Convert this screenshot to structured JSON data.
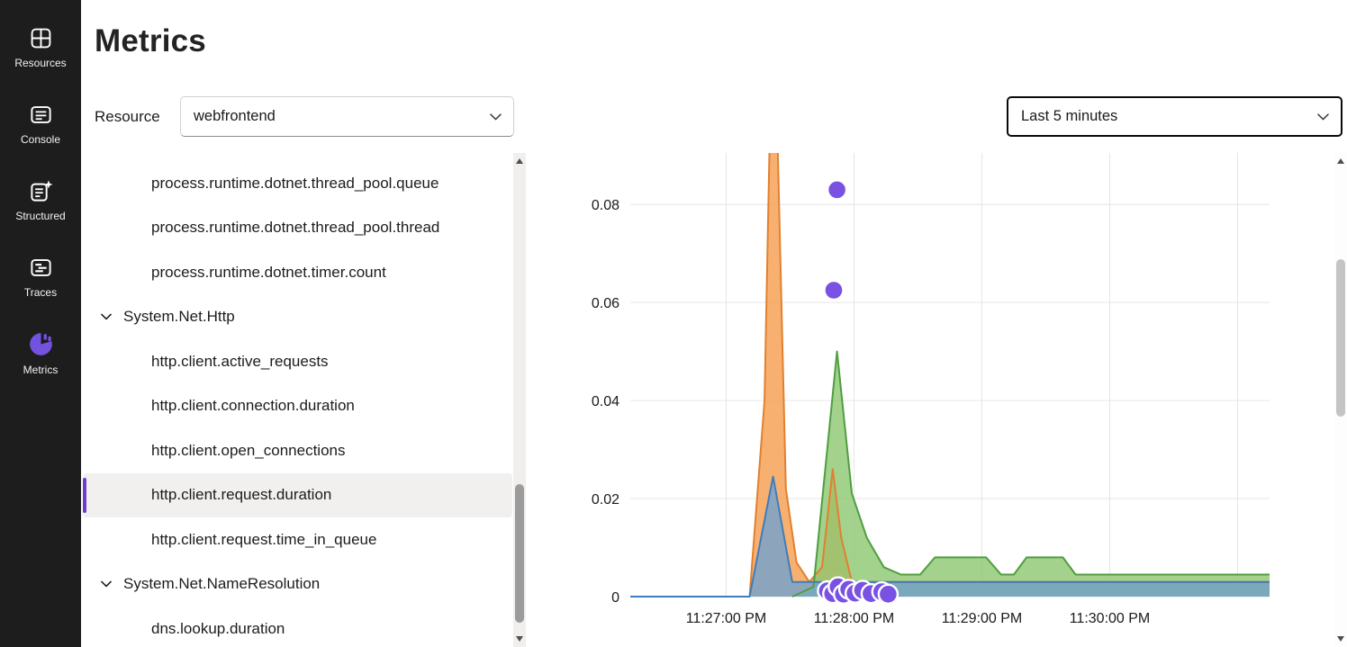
{
  "colors": {
    "accent_purple": "#7452e0",
    "sidebar_bg": "#1e1d1d",
    "selection_bg": "#f2f0ee",
    "selection_bar": "#6a3ec8"
  },
  "sidebar": {
    "items": [
      {
        "label": "Resources",
        "icon": "resources-grid-icon",
        "active": false
      },
      {
        "label": "Console",
        "icon": "console-icon",
        "active": false
      },
      {
        "label": "Structured",
        "icon": "structured-logs-icon",
        "active": false
      },
      {
        "label": "Traces",
        "icon": "traces-icon",
        "active": false
      },
      {
        "label": "Metrics",
        "icon": "metrics-chart-icon",
        "active": true
      }
    ]
  },
  "header": {
    "title": "Metrics"
  },
  "toolbar": {
    "resource_label": "Resource",
    "resource_value": "webfrontend",
    "time_range_value": "Last 5 minutes"
  },
  "metric_list": {
    "items": [
      {
        "label": "process.runtime.dotnet.thread_pool.queue",
        "type": "leaf",
        "selected": false
      },
      {
        "label": "process.runtime.dotnet.thread_pool.thread",
        "type": "leaf",
        "selected": false
      },
      {
        "label": "process.runtime.dotnet.timer.count",
        "type": "leaf",
        "selected": false
      },
      {
        "label": "System.Net.Http",
        "type": "group",
        "expanded": true
      },
      {
        "label": "http.client.active_requests",
        "type": "leaf",
        "selected": false
      },
      {
        "label": "http.client.connection.duration",
        "type": "leaf",
        "selected": false
      },
      {
        "label": "http.client.open_connections",
        "type": "leaf",
        "selected": false
      },
      {
        "label": "http.client.request.duration",
        "type": "leaf",
        "selected": true
      },
      {
        "label": "http.client.request.time_in_queue",
        "type": "leaf",
        "selected": false
      },
      {
        "label": "System.Net.NameResolution",
        "type": "group",
        "expanded": true
      },
      {
        "label": "dns.lookup.duration",
        "type": "leaf",
        "selected": false
      }
    ]
  },
  "chart_data": {
    "type": "area",
    "title": "",
    "grid": true,
    "grid_color": "#e6e6e6",
    "legend": "none",
    "x_axis": {
      "domain_seconds": [
        0,
        300
      ],
      "ticks": [
        {
          "t": 45,
          "label": "11:27:00 PM"
        },
        {
          "t": 105,
          "label": "11:28:00 PM"
        },
        {
          "t": 165,
          "label": "11:29:00 PM"
        },
        {
          "t": 225,
          "label": "11:30:00 PM"
        },
        {
          "t": 285,
          "label": ""
        }
      ]
    },
    "y_axis": {
      "domain": [
        0,
        0.0905
      ],
      "ticks": [
        {
          "v": 0,
          "label": "0"
        },
        {
          "v": 0.02,
          "label": "0.02"
        },
        {
          "v": 0.04,
          "label": "0.04"
        },
        {
          "v": 0.06,
          "label": "0.06"
        },
        {
          "v": 0.08,
          "label": "0.08"
        }
      ]
    },
    "series": [
      {
        "name": "series-orange",
        "color": "#e2802f",
        "fill": "rgba(247,162,88,0.85)",
        "points": [
          [
            56,
            0
          ],
          [
            63,
            0.04
          ],
          [
            65.5,
            0.095
          ],
          [
            69,
            0.095
          ],
          [
            73,
            0.022
          ],
          [
            78,
            0.007
          ],
          [
            84,
            0.003
          ],
          [
            90,
            0.006
          ],
          [
            95,
            0.026
          ],
          [
            99,
            0.012
          ],
          [
            104,
            0.003
          ],
          [
            300,
            0.003
          ]
        ]
      },
      {
        "name": "series-green",
        "color": "#4f9e3f",
        "fill": "rgba(140,199,112,0.8)",
        "points": [
          [
            76,
            0
          ],
          [
            86,
            0.002
          ],
          [
            97,
            0.05
          ],
          [
            104,
            0.021
          ],
          [
            111,
            0.012
          ],
          [
            119,
            0.006
          ],
          [
            127,
            0.0045
          ],
          [
            136,
            0.0045
          ],
          [
            143,
            0.008
          ],
          [
            167,
            0.008
          ],
          [
            174,
            0.0045
          ],
          [
            180,
            0.0045
          ],
          [
            186,
            0.008
          ],
          [
            203,
            0.008
          ],
          [
            209,
            0.0045
          ],
          [
            300,
            0.0045
          ]
        ]
      },
      {
        "name": "series-blue",
        "color": "#3e7dbd",
        "fill": "rgba(114,163,208,0.8)",
        "points": [
          [
            0,
            0
          ],
          [
            56,
            0
          ],
          [
            67,
            0.0245
          ],
          [
            76,
            0.003
          ],
          [
            300,
            0.003
          ]
        ]
      }
    ],
    "scatter": {
      "name": "scatter-purple-dots",
      "color": "#7a52e3",
      "stroke": "#ffffff",
      "points": [
        [
          97,
          0.083
        ],
        [
          95.5,
          0.0625
        ],
        [
          92.5,
          0.0012
        ],
        [
          95,
          0.0006
        ],
        [
          97.5,
          0.002
        ],
        [
          100,
          0.0005
        ],
        [
          102.5,
          0.0015
        ],
        [
          105.5,
          0.0007
        ],
        [
          109,
          0.0013
        ],
        [
          113,
          0.0006
        ],
        [
          118,
          0.001
        ],
        [
          121,
          0.0005
        ]
      ]
    }
  }
}
